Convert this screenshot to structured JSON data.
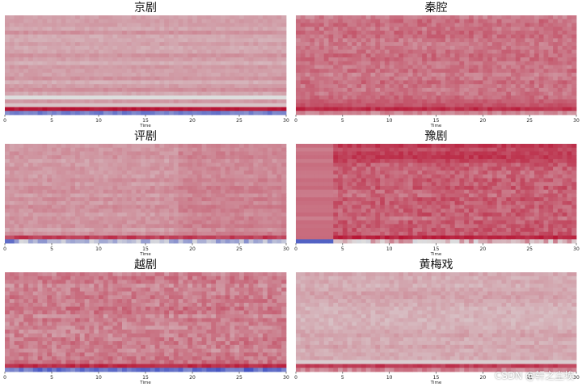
{
  "watermark": "CSDN @轩之尘埃",
  "colors": {
    "cold": "#3b4cc0",
    "neutral": "#dddddd",
    "warm": "#b40426"
  },
  "chart_data": [
    {
      "type": "heatmap",
      "title": "京剧",
      "xlabel": "Time",
      "xlim": [
        0,
        30
      ],
      "xticks": [
        0,
        5,
        10,
        15,
        20,
        25,
        30
      ],
      "profile": "jingju"
    },
    {
      "type": "heatmap",
      "title": "秦腔",
      "xlabel": "Time",
      "xlim": [
        0,
        30
      ],
      "xticks": [
        0,
        5,
        10,
        15,
        20,
        25,
        30
      ],
      "profile": "qinqiang"
    },
    {
      "type": "heatmap",
      "title": "评剧",
      "xlabel": "Time",
      "xlim": [
        0,
        30
      ],
      "xticks": [
        0,
        5,
        10,
        15,
        20,
        25,
        30
      ],
      "profile": "pingju"
    },
    {
      "type": "heatmap",
      "title": "豫剧",
      "xlabel": "Time",
      "xlim": [
        0,
        30
      ],
      "xticks": [
        0,
        5,
        10,
        15,
        20,
        25,
        30
      ],
      "profile": "yuju"
    },
    {
      "type": "heatmap",
      "title": "越剧",
      "xlabel": "Time",
      "xlim": [
        0,
        30
      ],
      "xticks": [
        0,
        5,
        10,
        15,
        20,
        25,
        30
      ],
      "profile": "yueju"
    },
    {
      "type": "heatmap",
      "title": "黄梅戏",
      "xlabel": "Time",
      "xlim": [
        0,
        30
      ],
      "xticks": [
        0,
        5,
        10,
        15,
        20,
        25,
        30
      ],
      "profile": "huangmei"
    }
  ]
}
